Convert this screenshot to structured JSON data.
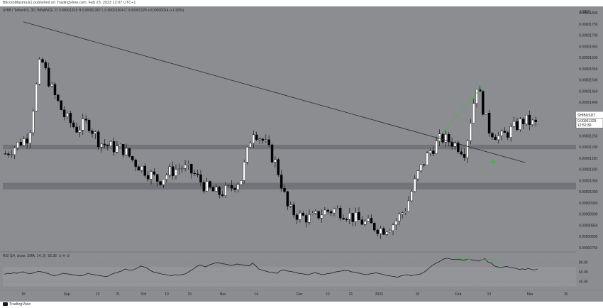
{
  "header": {
    "text": "BitcoinMaximus1 published on TradingView.com, Feb 23, 2023 12:07 UTC+1"
  },
  "legend": {
    "symbol": "SHIB / TetherUS, 3D, BINANCE",
    "ohlc": "O 0.00001319  H 0.00001367  L 0.00001304  C 0.00001329  +0.00000014 (+1.06%)"
  },
  "rsi_legend": {
    "text": "RSI (14, close, SMA, 14, 2)",
    "value": "55.36",
    "marks": "⊙  ✕  ⊙"
  },
  "footer": {
    "brand": "TradingView"
  },
  "axis": {
    "currency": "USDT",
    "ticker_label": "SHIBUSDT",
    "last_price": "0.00001329",
    "countdown": "12:52:39"
  },
  "colors": {
    "background": "#8c8d91",
    "up": "#ffffff",
    "down": "#000000",
    "trendline": "#2b2b2b",
    "zone": "#6f7074",
    "divergence": "#4caf50"
  },
  "chart_data": {
    "type": "candlestick",
    "y_ticks": [
      "0.00001800",
      "0.00001750",
      "0.00001700",
      "0.00001650",
      "0.00001600",
      "0.00001550",
      "0.00001500",
      "0.00001450",
      "0.00001400",
      "0.00001350",
      "0.00001300",
      "0.00001250",
      "0.00001200",
      "0.00001150",
      "0.00001100",
      "0.00001050",
      "0.00001000",
      "0.00000950",
      "0.00000900",
      "0.00000850",
      "0.00000800",
      "0.00000750"
    ],
    "ylim": [
      7.4e-06,
      1.81e-05
    ],
    "x_ticks": [
      {
        "label": "15",
        "date": "2022-08-15"
      },
      {
        "label": "Sep",
        "date": "2022-09-01"
      },
      {
        "label": "13",
        "date": "2022-09-13"
      },
      {
        "label": "21",
        "date": "2022-09-21"
      },
      {
        "label": "Oct",
        "date": "2022-10-01"
      },
      {
        "label": "10",
        "date": "2022-10-10"
      },
      {
        "label": "19",
        "date": "2022-10-19"
      },
      {
        "label": "Nov",
        "date": "2022-11-01"
      },
      {
        "label": "14",
        "date": "2022-11-14"
      },
      {
        "label": "Dec",
        "date": "2022-12-01"
      },
      {
        "label": "12",
        "date": "2022-12-12"
      },
      {
        "label": "21",
        "date": "2022-12-21"
      },
      {
        "label": "2023",
        "date": "2023-01-01"
      },
      {
        "label": "16",
        "date": "2023-01-16"
      },
      {
        "label": "Feb",
        "date": "2023-02-01"
      },
      {
        "label": "13",
        "date": "2023-02-13"
      },
      {
        "label": "Mar",
        "date": "2023-03-01"
      },
      {
        "label": "15",
        "date": "2023-03-15"
      }
    ],
    "price_path": [
      1.17e-05,
      1.21e-05,
      1.25e-05,
      1.6e-05,
      1.45e-05,
      1.34e-05,
      1.28e-05,
      1.31e-05,
      1.22e-05,
      1.2e-05,
      1.19e-05,
      1.13e-05,
      1.09e-05,
      1.05e-05,
      1.09e-05,
      1.11e-05,
      1.08e-05,
      1.02e-05,
      9.9e-06,
      1.01e-05,
      1.06e-05,
      1.28e-05,
      1.22e-05,
      1.12e-05,
      9.2e-06,
      8.9e-06,
      8.8e-06,
      9.1e-06,
      9.2e-06,
      9e-06,
      8.7e-06,
      8.5e-06,
      8.3e-06,
      8.6e-06,
      9.3e-06,
      1.08e-05,
      1.18e-05,
      1.24e-05,
      1.22e-05,
      1.18e-05,
      1.48e-05,
      1.28e-05,
      1.24e-05,
      1.28e-05,
      1.32e-05,
      1.3e-05
    ],
    "resistance_zones": [
      [
        1.19e-05,
        1.21e-05
      ],
      [
        1.01e-05,
        1.04e-05
      ]
    ],
    "trendline": [
      {
        "date": "2022-08-15",
        "value": 1.76e-05
      },
      {
        "date": "2023-02-25",
        "value": 1.13e-05
      }
    ],
    "rsi": {
      "ticks": [
        "80.00",
        "60.00",
        "40.00"
      ],
      "ylim": [
        25,
        95
      ],
      "values": [
        55,
        57,
        56,
        58,
        57,
        59,
        60,
        58,
        56,
        57,
        59,
        61,
        60,
        58,
        57,
        54,
        52,
        53,
        55,
        57,
        56,
        55,
        54,
        53,
        52,
        52,
        54,
        57,
        55,
        54,
        53,
        52,
        51,
        50,
        53,
        56,
        58,
        60,
        62,
        66,
        64,
        63,
        65,
        68,
        72,
        70,
        68,
        63,
        60,
        58,
        57,
        55,
        54,
        53,
        52,
        54,
        53,
        54,
        55,
        58,
        62,
        66,
        71,
        74,
        72,
        70,
        74,
        76,
        78,
        79,
        77,
        76,
        75,
        73,
        74,
        76,
        75,
        74,
        73,
        72,
        78,
        73,
        66,
        64,
        62,
        60,
        59,
        58,
        57,
        62,
        64,
        62,
        61,
        60,
        58,
        57,
        56,
        55,
        54,
        56,
        58,
        57,
        55,
        54,
        56,
        57,
        58,
        60,
        61,
        62,
        63,
        62,
        60,
        59,
        58,
        56,
        55,
        54,
        56,
        57,
        58,
        56,
        55,
        53,
        52,
        51,
        50,
        49,
        52,
        53,
        54,
        52,
        53,
        54,
        55,
        58,
        62,
        68,
        73,
        77,
        80,
        84,
        87,
        88,
        86,
        85,
        86,
        85,
        84,
        85,
        86,
        84,
        83,
        82,
        85,
        87,
        80,
        78,
        72,
        70,
        69,
        70,
        71,
        69,
        68,
        67,
        65,
        66,
        65,
        67,
        65,
        64,
        66
      ],
      "divergence_line": [
        [
          0.79,
          87
        ],
        [
          0.865,
          84
        ]
      ]
    }
  }
}
